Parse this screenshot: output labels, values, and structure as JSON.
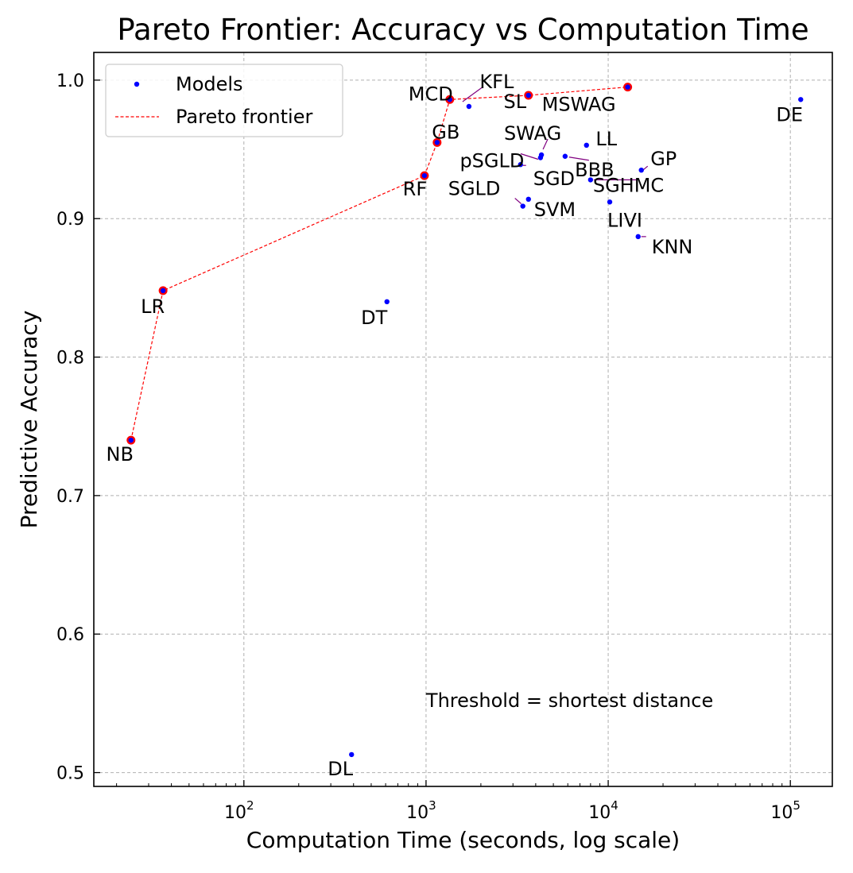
{
  "chart_data": {
    "type": "scatter",
    "title": "Pareto Frontier: Accuracy vs Computation Time",
    "xlabel": "Computation Time (seconds, log scale)",
    "ylabel": "Predictive Accuracy",
    "xscale": "log",
    "xlim": [
      15,
      170000
    ],
    "ylim": [
      0.49,
      1.02
    ],
    "x_ticks": [
      {
        "value": 100,
        "base": "10",
        "exp": "2"
      },
      {
        "value": 1000,
        "base": "10",
        "exp": "3"
      },
      {
        "value": 10000,
        "base": "10",
        "exp": "4"
      },
      {
        "value": 100000,
        "base": "10",
        "exp": "5"
      }
    ],
    "y_ticks": [
      {
        "value": 0.5,
        "label": "0.5"
      },
      {
        "value": 0.6,
        "label": "0.6"
      },
      {
        "value": 0.7,
        "label": "0.7"
      },
      {
        "value": 0.8,
        "label": "0.8"
      },
      {
        "value": 0.9,
        "label": "0.9"
      },
      {
        "value": 1.0,
        "label": "1.0"
      }
    ],
    "grid": true,
    "legend_position": "top-left",
    "legend": [
      {
        "label": "Models",
        "kind": "point",
        "color": "#0000ff"
      },
      {
        "label": "Pareto frontier",
        "kind": "dashed-line",
        "color": "#ff0000"
      }
    ],
    "colors": {
      "points": "#0000ff",
      "frontier": "#ff0000",
      "leader": "#800080"
    },
    "points": [
      {
        "label": "NB",
        "x": 24,
        "y": 0.74
      },
      {
        "label": "LR",
        "x": 36,
        "y": 0.848
      },
      {
        "label": "DT",
        "x": 610,
        "y": 0.84
      },
      {
        "label": "DL",
        "x": 390,
        "y": 0.513
      },
      {
        "label": "RF",
        "x": 980,
        "y": 0.931
      },
      {
        "label": "GB",
        "x": 1150,
        "y": 0.955
      },
      {
        "label": "MCD",
        "x": 1350,
        "y": 0.986
      },
      {
        "label": "KFL",
        "x": 1720,
        "y": 0.981
      },
      {
        "label": "SL",
        "x": 3650,
        "y": 0.989
      },
      {
        "label": "MSWAG",
        "x": 12800,
        "y": 0.995
      },
      {
        "label": "DE",
        "x": 114000,
        "y": 0.986
      },
      {
        "label": "SWAG",
        "x": 4300,
        "y": 0.946
      },
      {
        "label": "LL",
        "x": 7600,
        "y": 0.953
      },
      {
        "label": "pSGLD",
        "x": 4250,
        "y": 0.944
      },
      {
        "label": "BBB",
        "x": 5800,
        "y": 0.945
      },
      {
        "label": "GP",
        "x": 15200,
        "y": 0.935
      },
      {
        "label": "SGD",
        "x": 3300,
        "y": 0.939
      },
      {
        "label": "SGHMC",
        "x": 8000,
        "y": 0.928
      },
      {
        "label": "SGLD",
        "x": 3400,
        "y": 0.909
      },
      {
        "label": "SVM",
        "x": 3650,
        "y": 0.914
      },
      {
        "label": "LIVI",
        "x": 10200,
        "y": 0.912
      },
      {
        "label": "KNN",
        "x": 14600,
        "y": 0.887
      }
    ],
    "pareto_frontier": [
      "NB",
      "LR",
      "RF",
      "GB",
      "MCD",
      "SL",
      "MSWAG"
    ],
    "annotation": "Threshold = shortest distance"
  }
}
